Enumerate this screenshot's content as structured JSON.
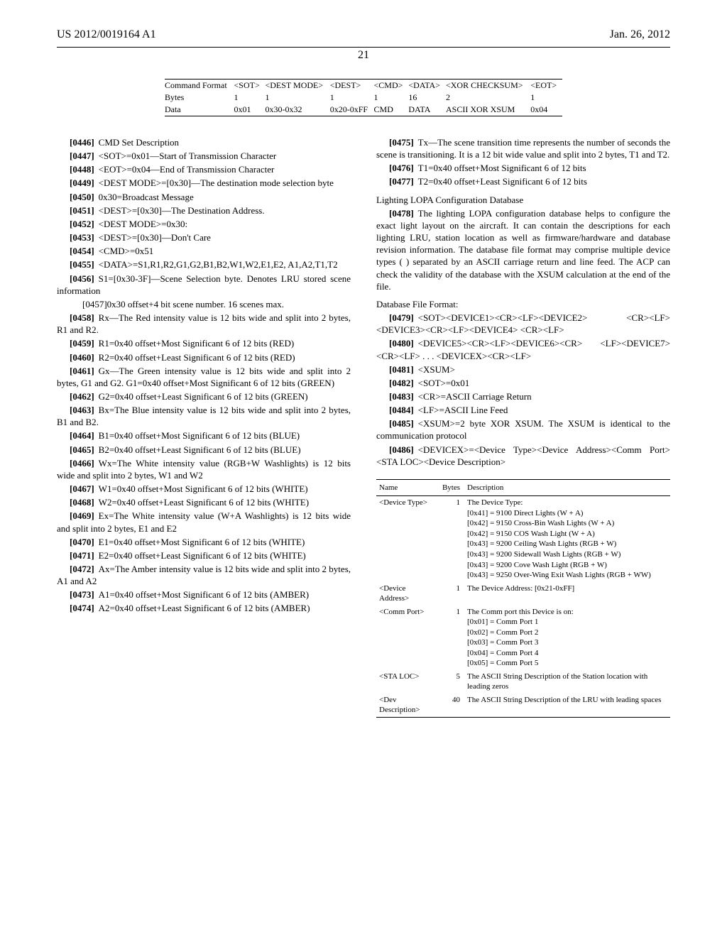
{
  "header": {
    "left": "US 2012/0019164 A1",
    "right": "Jan. 26, 2012"
  },
  "pageNumber": "21",
  "cmdTable": {
    "rows": [
      [
        "Command Format",
        "<SOT>",
        "<DEST MODE>",
        "<DEST>",
        "<CMD>",
        "<DATA>",
        "<XOR CHECKSUM>",
        "<EOT>"
      ],
      [
        "Bytes",
        "1",
        "1",
        "1",
        "1",
        "16",
        "2",
        "1"
      ],
      [
        "Data",
        "0x01",
        "0x30-0x32",
        "0x20-0xFF",
        "CMD",
        "DATA",
        "ASCII XOR XSUM",
        "0x04"
      ]
    ]
  },
  "leftParas": [
    {
      "num": "[0446]",
      "text": "CMD Set Description"
    },
    {
      "num": "[0447]",
      "text": "<SOT>=0x01—Start of Transmission Character"
    },
    {
      "num": "[0448]",
      "text": "<EOT>=0x04—End of Transmission Character"
    },
    {
      "num": "[0449]",
      "text": "<DEST MODE>=[0x30]—The destination mode selection byte"
    },
    {
      "num": "[0450]",
      "text": "0x30=Broadcast Message"
    },
    {
      "num": "[0451]",
      "text": "<DEST>=[0x30]—The Destination Address."
    },
    {
      "num": "[0452]",
      "text": "<DEST MODE>=0x30:"
    },
    {
      "num": "[0453]",
      "text": "<DEST>=[0x30]—Don't Care"
    },
    {
      "num": "[0454]",
      "text": "<CMD>=0x51"
    },
    {
      "num": "[0455]",
      "text": "<DATA>=S1,R1,R2,G1,G2,B1,B2,W1,W2,E1,E2, A1,A2,T1,T2"
    },
    {
      "num": "[0456]",
      "text": "S1=[0x30-3F]—Scene Selection byte. Denotes LRU stored scene information"
    },
    {
      "num": "[0457]",
      "text": "0x30 offset+4 bit scene number. 16 scenes max.",
      "sub": true
    },
    {
      "num": "[0458]",
      "text": "Rx—The Red intensity value is 12 bits wide and split into 2 bytes, R1 and R2."
    },
    {
      "num": "[0459]",
      "text": "R1=0x40 offset+Most Significant 6 of 12 bits (RED)"
    },
    {
      "num": "[0460]",
      "text": "R2=0x40 offset+Least Significant 6 of 12 bits (RED)"
    },
    {
      "num": "[0461]",
      "text": "Gx—The Green intensity value is 12 bits wide and split into 2 bytes, G1 and G2. G1=0x40 offset+Most Significant 6 of 12 bits (GREEN)"
    },
    {
      "num": "[0462]",
      "text": "G2=0x40 offset+Least Significant 6 of 12 bits (GREEN)"
    },
    {
      "num": "[0463]",
      "text": "Bx=The Blue intensity value is 12 bits wide and split into 2 bytes, B1 and B2."
    },
    {
      "num": "[0464]",
      "text": "B1=0x40 offset+Most Significant 6 of 12 bits (BLUE)"
    },
    {
      "num": "[0465]",
      "text": "B2=0x40 offset+Least Significant 6 of 12 bits (BLUE)"
    },
    {
      "num": "[0466]",
      "text": "Wx=The White intensity value (RGB+W Washlights) is 12 bits wide and split into 2 bytes, W1 and W2"
    },
    {
      "num": "[0467]",
      "text": "W1=0x40 offset+Most Significant 6 of 12 bits (WHITE)"
    },
    {
      "num": "[0468]",
      "text": "W2=0x40 offset+Least Significant 6 of 12 bits (WHITE)"
    },
    {
      "num": "[0469]",
      "text": "Ex=The White intensity value (W+A Washlights) is 12 bits wide and split into 2 bytes, E1 and E2"
    },
    {
      "num": "[0470]",
      "text": "E1=0x40 offset+Most Significant 6 of 12 bits (WHITE)"
    },
    {
      "num": "[0471]",
      "text": "E2=0x40 offset+Least Significant 6 of 12 bits (WHITE)"
    },
    {
      "num": "[0472]",
      "text": "Ax=The Amber intensity value is 12 bits wide and split into 2 bytes, A1 and A2"
    },
    {
      "num": "[0473]",
      "text": "A1=0x40 offset+Most Significant 6 of 12 bits (AMBER)"
    },
    {
      "num": "[0474]",
      "text": "A2=0x40 offset+Least Significant 6 of 12 bits (AMBER)"
    }
  ],
  "rightParas1": [
    {
      "num": "[0475]",
      "text": "Tx—The scene transition time represents the number of seconds the scene is transitioning. It is a 12 bit wide value and split into 2 bytes, T1 and T2."
    },
    {
      "num": "[0476]",
      "text": "T1=0x40 offset+Most Significant 6 of 12 bits"
    },
    {
      "num": "[0477]",
      "text": "T2=0x40 offset+Least Significant 6 of 12 bits"
    }
  ],
  "sectionHead1": "Lighting LOPA Configuration Database",
  "rightPara2": {
    "num": "[0478]",
    "text": "The lighting LOPA configuration database helps to configure the exact light layout on the aircraft. It can contain the descriptions for each lighting LRU, station location as well as firmware/hardware and database revision information. The database file format may comprise multiple device types ( ) separated by an ASCII carriage return and line feed. The ACP can check the validity of the database with the XSUM calculation at the end of the file."
  },
  "sectionHead2": "Database File Format:",
  "rightParas3": [
    {
      "num": "[0479]",
      "text": "<SOT><DEVICE1><CR><LF><DEVICE2> <CR><LF><DEVICE3><CR><LF><DEVICE4> <CR><LF>"
    },
    {
      "num": "[0480]",
      "text": "<DEVICE5><CR><LF><DEVICE6><CR> <LF><DEVICE7><CR><LF> . . . <DEVICEX><CR><LF>"
    },
    {
      "num": "[0481]",
      "text": "<XSUM>"
    },
    {
      "num": "[0482]",
      "text": "<SOT>=0x01"
    },
    {
      "num": "[0483]",
      "text": "<CR>=ASCII Carriage Return"
    },
    {
      "num": "[0484]",
      "text": "<LF>=ASCII Line Feed"
    },
    {
      "num": "[0485]",
      "text": "<XSUM>=2 byte XOR XSUM. The XSUM is identical to the communication protocol"
    },
    {
      "num": "[0486]",
      "text": "<DEVICEX>=<Device Type><Device Address><Comm Port><STA LOC><Device Description>"
    }
  ],
  "deviceTable": {
    "headers": [
      "Name",
      "Bytes",
      "Description"
    ],
    "rows": [
      {
        "name": "<Device Type>",
        "bytes": "1",
        "desc": [
          "The Device Type:",
          "[0x41] = 9100 Direct Lights (W + A)",
          "[0x42] = 9150 Cross-Bin Wash Lights (W + A)",
          "[0x42] = 9150 COS Wash Light (W + A)",
          "[0x43] = 9200 Ceiling Wash Lights (RGB + W)",
          "[0x43] = 9200 Sidewall Wash Lights (RGB + W)",
          "[0x43] = 9200 Cove Wash Light (RGB + W)",
          "[0x43] = 9250 Over-Wing Exit Wash Lights (RGB + WW)"
        ]
      },
      {
        "name": "<Device Address>",
        "bytes": "1",
        "desc": [
          "The Device Address: [0x21-0xFF]"
        ]
      },
      {
        "name": "<Comm Port>",
        "bytes": "1",
        "desc": [
          "The Comm port this Device is on:",
          "[0x01] = Comm Port 1",
          "[0x02] = Comm Port 2",
          "[0x03] = Comm Port 3",
          "[0x04] = Comm Port 4",
          "[0x05] = Comm Port 5"
        ]
      },
      {
        "name": "<STA LOC>",
        "bytes": "5",
        "desc": [
          "The ASCII String Description of the Station location with leading zeros"
        ]
      },
      {
        "name": "<Dev Description>",
        "bytes": "40",
        "desc": [
          "The ASCII String Description of the LRU with leading spaces"
        ]
      }
    ]
  }
}
